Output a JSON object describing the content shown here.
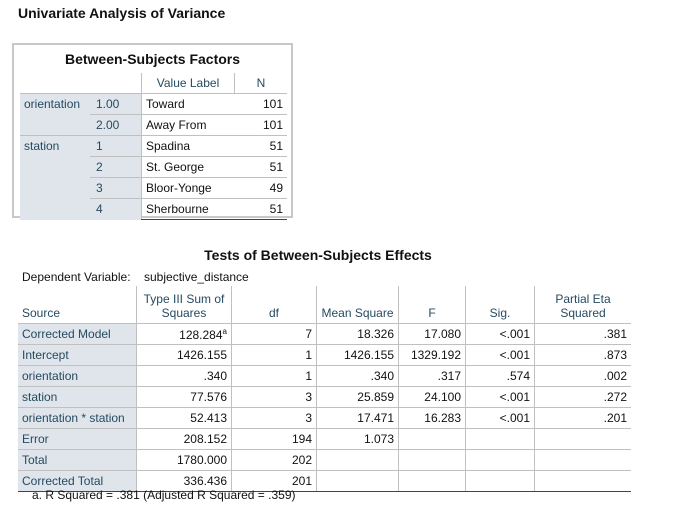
{
  "page_title": "Univariate Analysis of Variance",
  "factors": {
    "title": "Between-Subjects Factors",
    "headers": {
      "value_label": "Value Label",
      "n": "N"
    },
    "rows": [
      {
        "factor": "orientation",
        "level": "1.00",
        "label": "Toward",
        "n": "101"
      },
      {
        "factor": "",
        "level": "2.00",
        "label": "Away From",
        "n": "101"
      },
      {
        "factor": "station",
        "level": "1",
        "label": "Spadina",
        "n": "51"
      },
      {
        "factor": "",
        "level": "2",
        "label": "St. George",
        "n": "51"
      },
      {
        "factor": "",
        "level": "3",
        "label": "Bloor-Yonge",
        "n": "49"
      },
      {
        "factor": "",
        "level": "4",
        "label": "Sherbourne",
        "n": "51"
      }
    ]
  },
  "effects": {
    "title": "Tests of Between-Subjects Effects",
    "dependent_label": "Dependent Variable:",
    "dependent_value": "subjective_distance",
    "headers": {
      "source": "Source",
      "ss_line1": "Type III Sum of",
      "ss_line2": "Squares",
      "df": "df",
      "ms": "Mean Square",
      "f": "F",
      "sig": "Sig.",
      "eta_line1": "Partial Eta",
      "eta_line2": "Squared"
    },
    "rows": [
      {
        "source": "Corrected Model",
        "ss": "128.284",
        "ss_sup": "a",
        "df": "7",
        "ms": "18.326",
        "f": "17.080",
        "sig": "<.001",
        "eta": ".381"
      },
      {
        "source": "Intercept",
        "ss": "1426.155",
        "ss_sup": "",
        "df": "1",
        "ms": "1426.155",
        "f": "1329.192",
        "sig": "<.001",
        "eta": ".873"
      },
      {
        "source": "orientation",
        "ss": ".340",
        "ss_sup": "",
        "df": "1",
        "ms": ".340",
        "f": ".317",
        "sig": ".574",
        "eta": ".002"
      },
      {
        "source": "station",
        "ss": "77.576",
        "ss_sup": "",
        "df": "3",
        "ms": "25.859",
        "f": "24.100",
        "sig": "<.001",
        "eta": ".272"
      },
      {
        "source": "orientation * station",
        "ss": "52.413",
        "ss_sup": "",
        "df": "3",
        "ms": "17.471",
        "f": "16.283",
        "sig": "<.001",
        "eta": ".201"
      },
      {
        "source": "Error",
        "ss": "208.152",
        "ss_sup": "",
        "df": "194",
        "ms": "1.073",
        "f": "",
        "sig": "",
        "eta": ""
      },
      {
        "source": "Total",
        "ss": "1780.000",
        "ss_sup": "",
        "df": "202",
        "ms": "",
        "f": "",
        "sig": "",
        "eta": ""
      },
      {
        "source": "Corrected Total",
        "ss": "336.436",
        "ss_sup": "",
        "df": "201",
        "ms": "",
        "f": "",
        "sig": "",
        "eta": ""
      }
    ],
    "footnote": "a. R Squared = .381 (Adjusted R Squared = .359)"
  }
}
